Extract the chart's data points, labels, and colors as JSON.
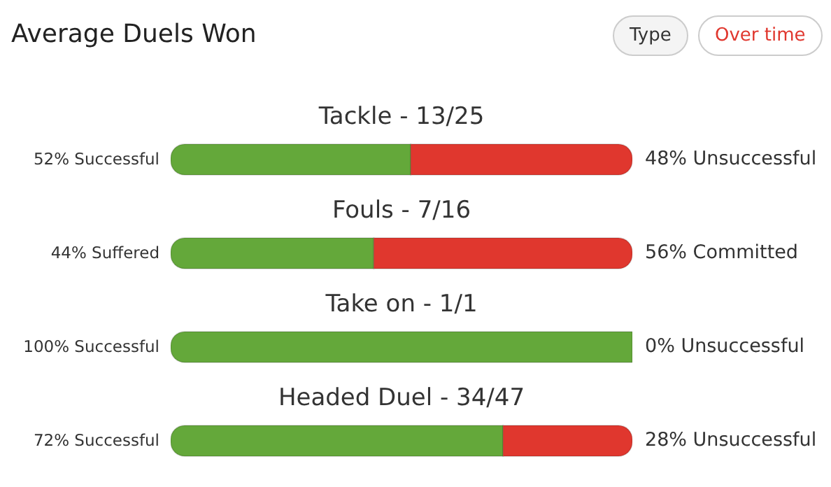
{
  "chart_data": {
    "type": "bar",
    "orientation": "horizontal",
    "stacked": true,
    "title": "Average Duels Won",
    "annotations": [
      "Type",
      "Over time"
    ],
    "categories": [
      "Tackle - 13/25",
      "Fouls - 7/16",
      "Take on - 1/1",
      "Headed Duel - 34/47"
    ],
    "xlim": [
      0,
      100
    ],
    "grid": false,
    "legend": false,
    "series": [
      {
        "color": "#64a83a",
        "values": [
          52,
          44,
          100,
          72
        ],
        "value_labels": [
          "52% Successful",
          "44% Suffered",
          "100% Successful",
          "72% Successful"
        ]
      },
      {
        "color": "#e0372e",
        "values": [
          48,
          56,
          0,
          28
        ],
        "value_labels": [
          "48% Unsuccessful",
          "56% Committed",
          "0% Unsuccessful",
          "28% Unsuccessful"
        ]
      }
    ]
  }
}
